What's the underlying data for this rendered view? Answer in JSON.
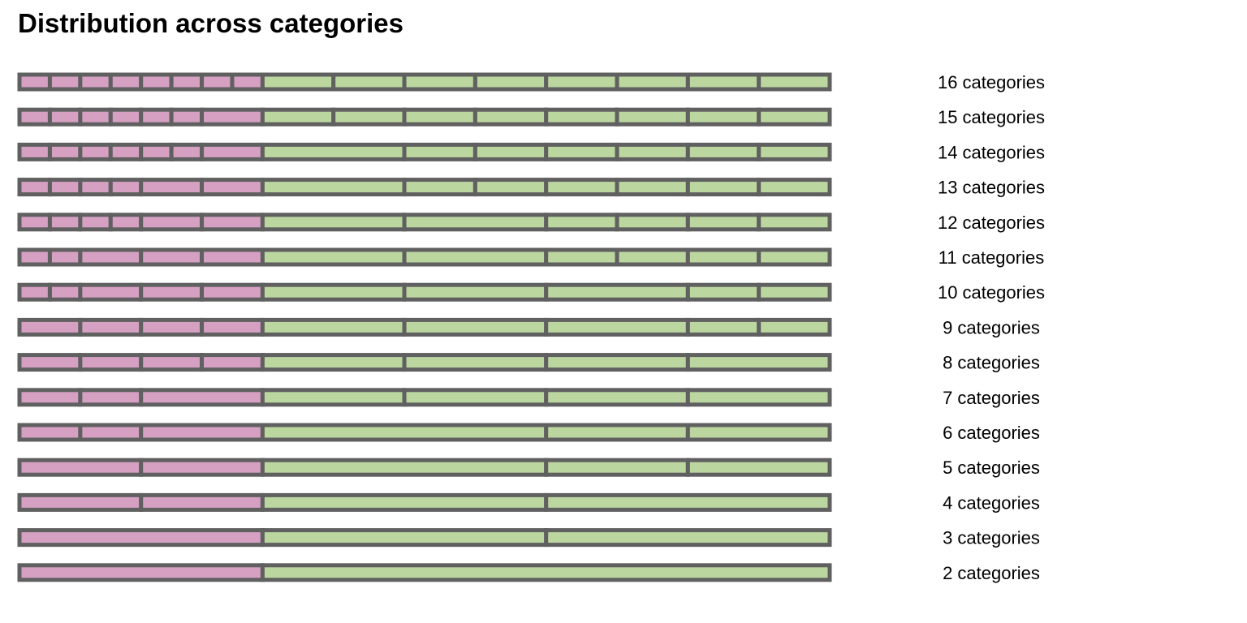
{
  "chart_data": {
    "type": "bar",
    "title": "Distribution across categories",
    "xlabel": "",
    "ylabel": "",
    "colors": {
      "left": "#d6a0c3",
      "right": "#bcd6a0",
      "border": "#606060"
    },
    "rows": [
      {
        "label": "16 categories",
        "left": [
          1,
          1,
          1,
          1,
          1,
          1,
          1,
          1
        ],
        "right": [
          1,
          1,
          1,
          1,
          1,
          1,
          1,
          1
        ]
      },
      {
        "label": "15 categories",
        "left": [
          1,
          1,
          1,
          1,
          1,
          1,
          2
        ],
        "right": [
          1,
          1,
          1,
          1,
          1,
          1,
          1,
          1
        ]
      },
      {
        "label": "14 categories",
        "left": [
          1,
          1,
          1,
          1,
          1,
          1,
          2
        ],
        "right": [
          2,
          1,
          1,
          1,
          1,
          1,
          1
        ]
      },
      {
        "label": "13 categories",
        "left": [
          1,
          1,
          1,
          1,
          2,
          2
        ],
        "right": [
          2,
          1,
          1,
          1,
          1,
          1,
          1
        ]
      },
      {
        "label": "12 categories",
        "left": [
          1,
          1,
          1,
          1,
          2,
          2
        ],
        "right": [
          2,
          2,
          1,
          1,
          1,
          1
        ]
      },
      {
        "label": "11 categories",
        "left": [
          1,
          1,
          2,
          2,
          2
        ],
        "right": [
          2,
          2,
          1,
          1,
          1,
          1
        ]
      },
      {
        "label": "10 categories",
        "left": [
          1,
          1,
          2,
          2,
          2
        ],
        "right": [
          2,
          2,
          2,
          1,
          1
        ]
      },
      {
        "label": "9 categories",
        "left": [
          2,
          2,
          2,
          2
        ],
        "right": [
          2,
          2,
          2,
          1,
          1
        ]
      },
      {
        "label": "8 categories",
        "left": [
          2,
          2,
          2,
          2
        ],
        "right": [
          2,
          2,
          2,
          2
        ]
      },
      {
        "label": "7 categories",
        "left": [
          2,
          2,
          4
        ],
        "right": [
          2,
          2,
          2,
          2
        ]
      },
      {
        "label": "6 categories",
        "left": [
          2,
          2,
          4
        ],
        "right": [
          4,
          2,
          2
        ]
      },
      {
        "label": "5 categories",
        "left": [
          4,
          4
        ],
        "right": [
          4,
          2,
          2
        ]
      },
      {
        "label": "4 categories",
        "left": [
          4,
          4
        ],
        "right": [
          4,
          4
        ]
      },
      {
        "label": "3 categories",
        "left": [
          8
        ],
        "right": [
          4,
          4
        ]
      },
      {
        "label": "2 categories",
        "left": [
          8
        ],
        "right": [
          8
        ]
      }
    ]
  }
}
